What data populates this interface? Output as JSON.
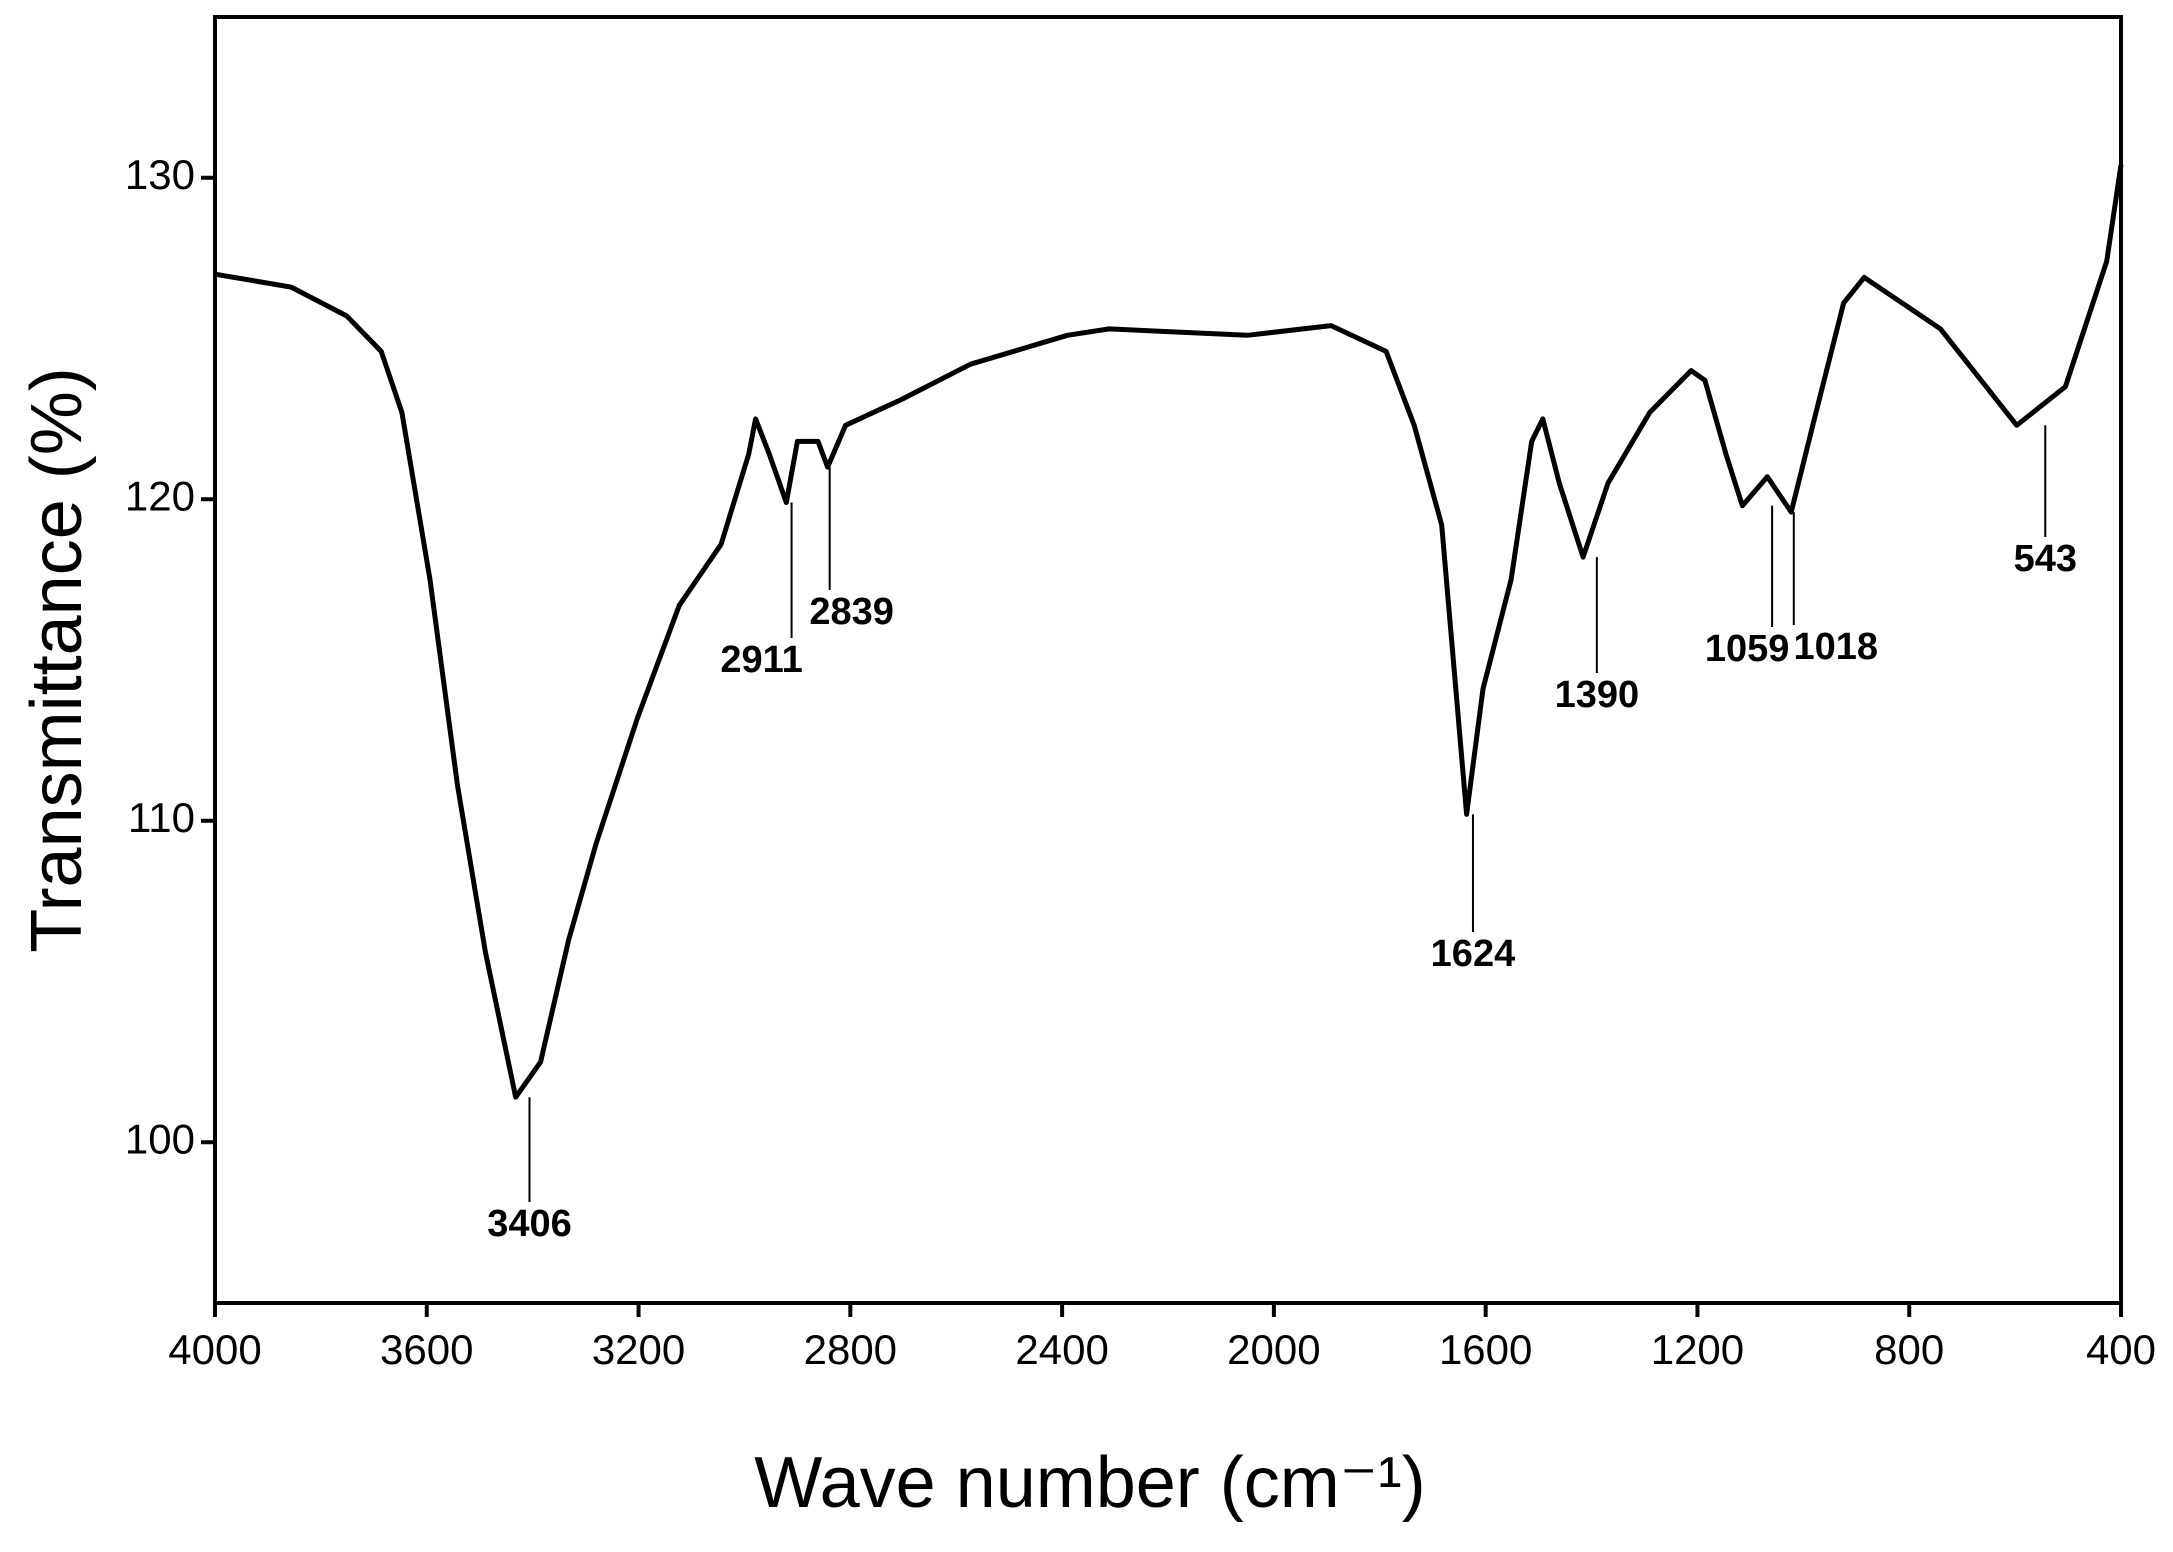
{
  "chart_data": {
    "type": "line",
    "x_label": "Wave number (cm⁻¹)",
    "y_label": "Transmittance (%)",
    "color": "#000000",
    "x": [
      4000,
      3856,
      3751,
      3686,
      3647,
      3594,
      3542,
      3489,
      3432,
      3385,
      3332,
      3280,
      3202,
      3123,
      3044,
      2992,
      2979,
      2953,
      2921,
      2900,
      2861,
      2843,
      2809,
      2704,
      2573,
      2390,
      2311,
      2050,
      1892,
      1788,
      1735,
      1683,
      1636,
      1605,
      1552,
      1513,
      1492,
      1461,
      1416,
      1369,
      1290,
      1212,
      1186,
      1146,
      1115,
      1068,
      1023,
      976,
      924,
      885,
      741,
      597,
      505,
      427,
      400
    ],
    "values": [
      127.0,
      126.6,
      125.7,
      124.6,
      122.7,
      117.5,
      111.1,
      105.9,
      101.4,
      102.5,
      106.3,
      109.3,
      113.2,
      116.7,
      118.6,
      121.4,
      122.5,
      121.4,
      119.9,
      121.8,
      121.8,
      121.0,
      122.3,
      123.1,
      124.2,
      125.1,
      125.3,
      125.1,
      125.4,
      124.6,
      122.3,
      119.2,
      110.2,
      114.1,
      117.5,
      121.8,
      122.5,
      120.5,
      118.2,
      120.5,
      122.7,
      124.0,
      123.7,
      121.4,
      119.8,
      120.7,
      119.6,
      122.7,
      126.1,
      126.9,
      125.3,
      122.3,
      123.5,
      127.4,
      130.4
    ],
    "xlim": [
      4000,
      400
    ],
    "xticks": [
      4000,
      3600,
      3200,
      2800,
      2400,
      2000,
      1600,
      1200,
      800,
      400
    ],
    "ylim": [
      95,
      135
    ],
    "yticks": [
      100,
      110,
      120,
      130
    ],
    "annotations": [
      {
        "x": 3406,
        "y": 101.4
      },
      {
        "x": 2911,
        "y": 119.9
      },
      {
        "x": 2839,
        "y": 121.0
      },
      {
        "x": 1624,
        "y": 110.2
      },
      {
        "x": 1390,
        "y": 118.2
      },
      {
        "x": 1059,
        "y": 119.8
      },
      {
        "x": 1018,
        "y": 119.6
      },
      {
        "x": 543,
        "y": 122.3
      }
    ]
  }
}
